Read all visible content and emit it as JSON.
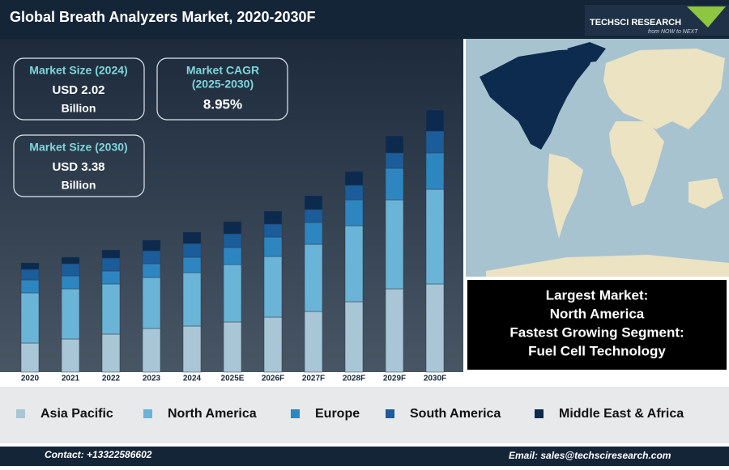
{
  "header": {
    "title": "Global Breath Analyzers Market, 2020-2030F",
    "logo": "TECHSCI RESEARCH",
    "tagline": "from NOW to NEXT"
  },
  "stats": [
    {
      "label": "Market Size (2024)",
      "value": "USD 2.02",
      "unit": "Billion"
    },
    {
      "label": "Market CAGR",
      "period": "(2025-2030)",
      "value": "8.95%"
    },
    {
      "label": "Market Size (2030)",
      "value": "USD 3.38",
      "unit": "Billion"
    }
  ],
  "highlights": [
    "Largest Market:",
    "North America",
    "Fastest Growing Segment:",
    "Fuel Cell Technology"
  ],
  "chart_data": {
    "type": "bar",
    "stacked": true,
    "categories": [
      "2020",
      "2021",
      "2022",
      "2023",
      "2024",
      "2025E",
      "2026F",
      "2027F",
      "2028F",
      "2029F",
      "2030F"
    ],
    "series": [
      {
        "name": "Asia Pacific",
        "color": "#a9c6d6",
        "values": [
          36,
          41,
          47,
          54,
          57,
          62,
          68,
          75,
          87,
          103,
          109
        ]
      },
      {
        "name": "North America",
        "color": "#6ab4d8",
        "values": [
          62,
          62,
          62,
          63,
          66,
          71,
          75,
          83,
          94,
          110,
          117
        ]
      },
      {
        "name": "Europe",
        "color": "#2e86c1",
        "values": [
          16,
          16,
          16,
          17,
          19,
          21,
          24,
          27,
          32,
          39,
          45
        ]
      },
      {
        "name": "South America",
        "color": "#1b5c9b",
        "values": [
          13,
          15,
          16,
          16,
          17,
          17,
          16,
          16,
          18,
          19,
          27
        ]
      },
      {
        "name": "Middle East & Africa",
        "color": "#0c2a4e",
        "values": [
          8,
          8,
          10,
          13,
          14,
          15,
          16,
          17,
          17,
          21,
          26
        ]
      }
    ]
  },
  "footer": {
    "contact": "Contact: +13322586602",
    "email": "Email: sales@techsciresearch.com"
  }
}
